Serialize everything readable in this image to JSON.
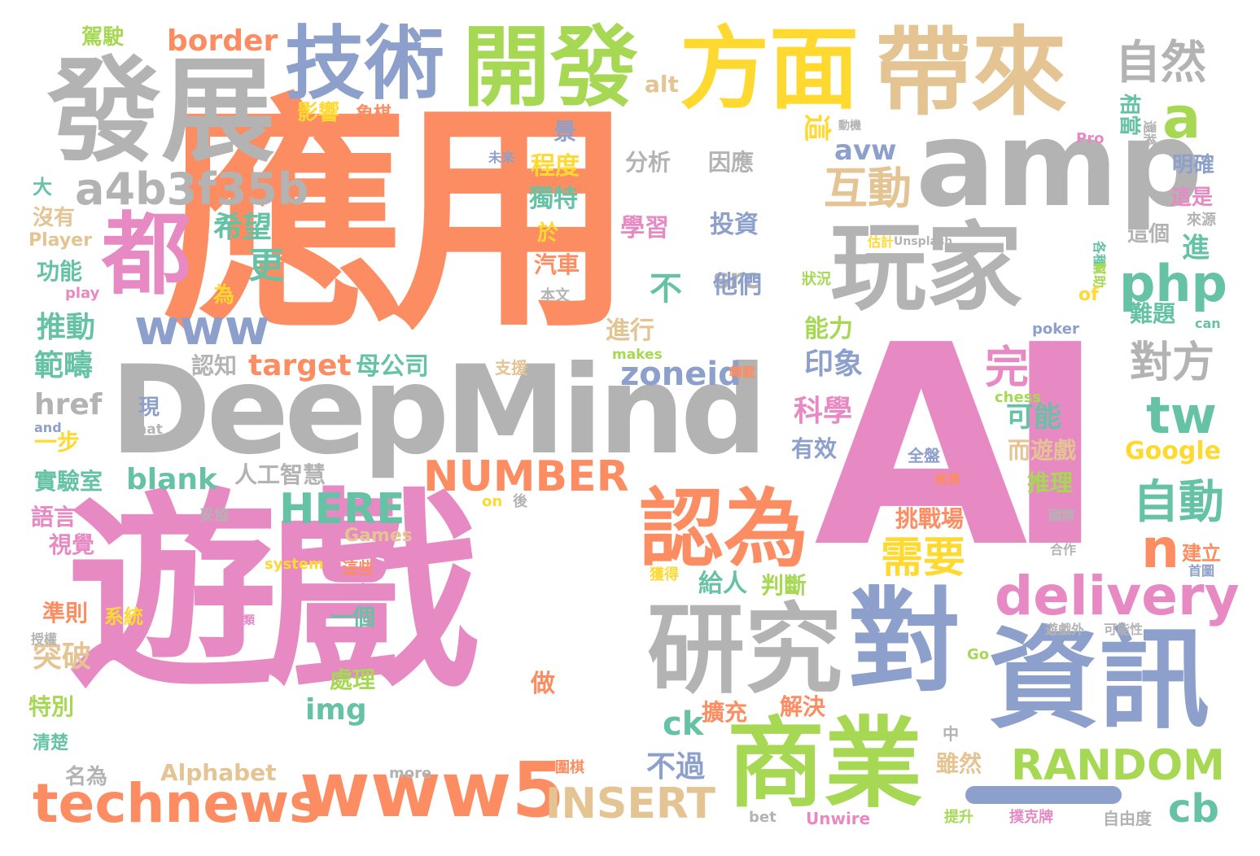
{
  "palette": {
    "orange": "#fc8d62",
    "pink": "#e78ac3",
    "gray": "#b3b3b3",
    "blue": "#8da0cb",
    "green": "#a6d854",
    "yellow": "#ffd92f",
    "tan": "#e5c494",
    "teal": "#66c2a5"
  },
  "words": [
    {
      "text": "應用",
      "color": "#fc8d62"
    },
    {
      "text": "遊戲",
      "color": "#e78ac3"
    },
    {
      "text": "AI",
      "color": "#e78ac3"
    },
    {
      "text": "DeepMind",
      "color": "#b3b3b3"
    },
    {
      "text": "amp",
      "color": "#b3b3b3"
    },
    {
      "text": "發展",
      "color": "#b3b3b3"
    },
    {
      "text": "玩家",
      "color": "#b3b3b3"
    },
    {
      "text": "帶來",
      "color": "#e5c494"
    },
    {
      "text": "方面",
      "color": "#ffd92f"
    },
    {
      "text": "開發",
      "color": "#a6d854"
    },
    {
      "text": "技術",
      "color": "#8da0cb"
    },
    {
      "text": "都",
      "color": "#e78ac3"
    },
    {
      "text": "對",
      "color": "#8da0cb"
    },
    {
      "text": "資訊",
      "color": "#8da0cb"
    },
    {
      "text": "研究",
      "color": "#b3b3b3"
    },
    {
      "text": "商業",
      "color": "#a6d854"
    },
    {
      "text": "認為",
      "color": "#fc8d62"
    },
    {
      "text": "technews",
      "color": "#fc8d62"
    },
    {
      "text": "www5",
      "color": "#fc8d62"
    },
    {
      "text": "a4b3f35b",
      "color": "#b3b3b3"
    },
    {
      "text": "www",
      "color": "#8da0cb"
    },
    {
      "text": "NUMBER",
      "color": "#fc8d62"
    },
    {
      "text": "delivery",
      "color": "#e78ac3"
    },
    {
      "text": "RANDOM",
      "color": "#a6d854"
    },
    {
      "text": "INSERT",
      "color": "#e5c494"
    },
    {
      "text": "php",
      "color": "#66c2a5"
    },
    {
      "text": "自然",
      "color": "#b3b3b3"
    },
    {
      "text": "a",
      "color": "#a6d854"
    },
    {
      "text": "互動",
      "color": "#e5c494"
    },
    {
      "text": "avw",
      "color": "#8da0cb"
    },
    {
      "text": "完美",
      "color": "#e78ac3"
    },
    {
      "text": "對方",
      "color": "#b3b3b3"
    },
    {
      "text": "tw",
      "color": "#66c2a5"
    },
    {
      "text": "自動",
      "color": "#66c2a5"
    },
    {
      "text": "n",
      "color": "#fc8d62"
    },
    {
      "text": "HERE",
      "color": "#66c2a5"
    },
    {
      "text": "zoneid",
      "color": "#8da0cb"
    },
    {
      "text": "需要",
      "color": "#ffd92f"
    },
    {
      "text": "cb",
      "color": "#66c2a5"
    },
    {
      "text": "border",
      "color": "#fc8d62"
    },
    {
      "text": "駕駛",
      "color": "#a6d854"
    },
    {
      "text": "alt",
      "color": "#e5c494"
    },
    {
      "text": "影響",
      "color": "#ffd92f"
    },
    {
      "text": "象棋",
      "color": "#fc8d62"
    },
    {
      "text": "景",
      "color": "#8da0cb"
    },
    {
      "text": "分析",
      "color": "#b3b3b3"
    },
    {
      "text": "因應",
      "color": "#b3b3b3"
    },
    {
      "text": "程度",
      "color": "#ffd92f"
    },
    {
      "text": "獨特",
      "color": "#66c2a5"
    },
    {
      "text": "學習",
      "color": "#e78ac3"
    },
    {
      "text": "投資",
      "color": "#8da0cb"
    },
    {
      "text": "希望",
      "color": "#66c2a5"
    },
    {
      "text": "更",
      "color": "#66c2a5"
    },
    {
      "text": "不",
      "color": "#66c2a5"
    },
    {
      "text": "src",
      "color": "#b3b3b3"
    },
    {
      "text": "他們",
      "color": "#8da0cb"
    },
    {
      "text": "於",
      "color": "#ffd92f"
    },
    {
      "text": "汽車",
      "color": "#fc8d62"
    },
    {
      "text": "為",
      "color": "#ffd92f"
    },
    {
      "text": "進行",
      "color": "#e5c494"
    },
    {
      "text": "能力",
      "color": "#a6d854"
    },
    {
      "text": "推動",
      "color": "#66c2a5"
    },
    {
      "text": "範疇",
      "color": "#66c2a5"
    },
    {
      "text": "功能",
      "color": "#66c2a5"
    },
    {
      "text": "沒有",
      "color": "#e5c494"
    },
    {
      "text": "大",
      "color": "#66c2a5"
    },
    {
      "text": "Player",
      "color": "#e5c494"
    },
    {
      "text": "play",
      "color": "#e78ac3"
    },
    {
      "text": "本文",
      "color": "#b3b3b3"
    },
    {
      "text": "未來",
      "color": "#8da0cb"
    },
    {
      "text": "認知",
      "color": "#b3b3b3"
    },
    {
      "text": "target",
      "color": "#fc8d62"
    },
    {
      "text": "母公司",
      "color": "#66c2a5"
    },
    {
      "text": "印象",
      "color": "#8da0cb"
    },
    {
      "text": "科學",
      "color": "#e78ac3"
    },
    {
      "text": "可能",
      "color": "#66c2a5"
    },
    {
      "text": "有效",
      "color": "#8da0cb"
    },
    {
      "text": "href",
      "color": "#b3b3b3"
    },
    {
      "text": "一步",
      "color": "#ffd92f"
    },
    {
      "text": "現",
      "color": "#8da0cb"
    },
    {
      "text": "and",
      "color": "#8da0cb"
    },
    {
      "text": "that",
      "color": "#b3b3b3"
    },
    {
      "text": "實驗室",
      "color": "#66c2a5"
    },
    {
      "text": "blank",
      "color": "#66c2a5"
    },
    {
      "text": "人工智慧",
      "color": "#b3b3b3"
    },
    {
      "text": "語言",
      "color": "#e78ac3"
    },
    {
      "text": "Games",
      "color": "#e5c494"
    },
    {
      "text": "視覺",
      "color": "#e78ac3"
    },
    {
      "text": "system",
      "color": "#ffd92f"
    },
    {
      "text": "這些",
      "color": "#fc8d62"
    },
    {
      "text": "目標",
      "color": "#e78ac3"
    },
    {
      "text": "給人",
      "color": "#66c2a5"
    },
    {
      "text": "判斷",
      "color": "#a6d854"
    },
    {
      "text": "挑戰場",
      "color": "#fc8d62"
    },
    {
      "text": "準則",
      "color": "#fc8d62"
    },
    {
      "text": "系統",
      "color": "#ffd92f"
    },
    {
      "text": "一個",
      "color": "#66c2a5"
    },
    {
      "text": "突破",
      "color": "#e5c494"
    },
    {
      "text": "處理",
      "color": "#a6d854"
    },
    {
      "text": "特別",
      "color": "#a6d854"
    },
    {
      "text": "做",
      "color": "#fc8d62"
    },
    {
      "text": "img",
      "color": "#66c2a5"
    },
    {
      "text": "ck",
      "color": "#66c2a5"
    },
    {
      "text": "擴充",
      "color": "#fc8d62"
    },
    {
      "text": "解決",
      "color": "#fc8d62"
    },
    {
      "text": "清楚",
      "color": "#66c2a5"
    },
    {
      "text": "名為",
      "color": "#b3b3b3"
    },
    {
      "text": "Alphabet",
      "color": "#e5c494"
    },
    {
      "text": "more",
      "color": "#b3b3b3"
    },
    {
      "text": "圍棋",
      "color": "#fc8d62"
    },
    {
      "text": "不過",
      "color": "#8da0cb"
    },
    {
      "text": "雖然",
      "color": "#e5c494"
    },
    {
      "text": "中",
      "color": "#b3b3b3"
    },
    {
      "text": "bet",
      "color": "#b3b3b3"
    },
    {
      "text": "Unwire",
      "color": "#e78ac3"
    },
    {
      "text": "提升",
      "color": "#a6d854"
    },
    {
      "text": "撲克牌",
      "color": "#e78ac3"
    },
    {
      "text": "自由度",
      "color": "#b3b3b3"
    },
    {
      "text": "Google",
      "color": "#ffd92f"
    },
    {
      "text": "而遊戲",
      "color": "#e5c494"
    },
    {
      "text": "推理",
      "color": "#a6d854"
    },
    {
      "text": "明確",
      "color": "#8da0cb"
    },
    {
      "text": "這是",
      "color": "#e78ac3"
    },
    {
      "text": "來源",
      "color": "#b3b3b3"
    },
    {
      "text": "這個",
      "color": "#b3b3b3"
    },
    {
      "text": "進",
      "color": "#66c2a5"
    },
    {
      "text": "相當",
      "color": "#66c2a5"
    },
    {
      "text": "還將",
      "color": "#b3b3b3"
    },
    {
      "text": "Pro",
      "color": "#e78ac3"
    },
    {
      "text": "動機",
      "color": "#b3b3b3"
    },
    {
      "text": "這",
      "color": "#ffd92f"
    },
    {
      "text": "估計",
      "color": "#ffd92f"
    },
    {
      "text": "Unsplash",
      "color": "#b3b3b3"
    },
    {
      "text": "各種",
      "color": "#66c2a5"
    },
    {
      "text": "幫助",
      "color": "#a6d854"
    },
    {
      "text": "狀況",
      "color": "#a6d854"
    },
    {
      "text": "of",
      "color": "#ffd92f"
    },
    {
      "text": "難題",
      "color": "#66c2a5"
    },
    {
      "text": "poker",
      "color": "#8da0cb"
    },
    {
      "text": "can",
      "color": "#66c2a5"
    },
    {
      "text": "makes",
      "color": "#a6d854"
    },
    {
      "text": "支援",
      "color": "#e5c494"
    },
    {
      "text": "轉載",
      "color": "#fc8d62"
    },
    {
      "text": "chess",
      "color": "#a6d854"
    },
    {
      "text": "全盤",
      "color": "#8da0cb"
    },
    {
      "text": "推算",
      "color": "#fc8d62"
    },
    {
      "text": "on",
      "color": "#ffd92f"
    },
    {
      "text": "後",
      "color": "#b3b3b3"
    },
    {
      "text": "國際",
      "color": "#b3b3b3"
    },
    {
      "text": "建立",
      "color": "#fc8d62"
    },
    {
      "text": "合作",
      "color": "#b3b3b3"
    },
    {
      "text": "首圖",
      "color": "#8da0cb"
    },
    {
      "text": "妥協",
      "color": "#b3b3b3"
    },
    {
      "text": "獲得",
      "color": "#ffd92f"
    },
    {
      "text": "人類",
      "color": "#e78ac3"
    },
    {
      "text": "遊戲外",
      "color": "#b3b3b3"
    },
    {
      "text": "可能性",
      "color": "#b3b3b3"
    },
    {
      "text": "Go",
      "color": "#a6d854"
    },
    {
      "text": "授權",
      "color": "#b3b3b3"
    }
  ]
}
